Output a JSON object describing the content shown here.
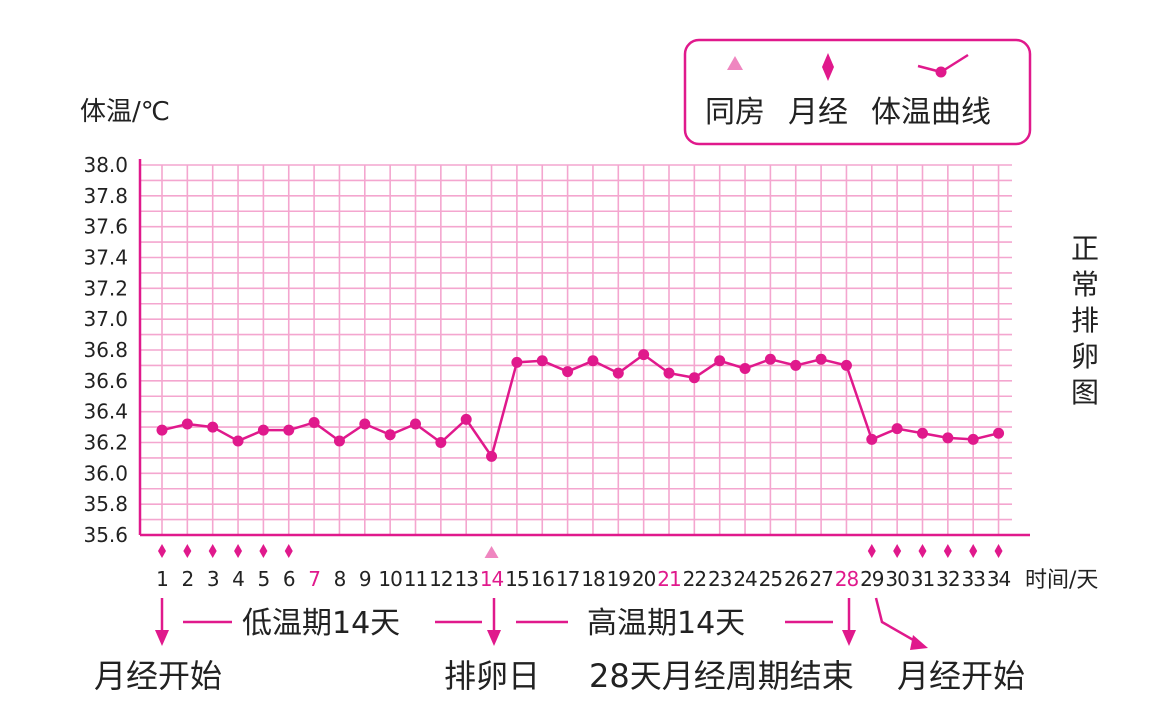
{
  "chart_data": {
    "type": "line",
    "title": "正常排卵图",
    "ylabel": "体温/℃",
    "xlabel": "时间/天",
    "ylim": [
      35.6,
      38.0
    ],
    "y_ticks": [
      "35.6",
      "35.8",
      "36.0",
      "36.2",
      "36.4",
      "36.6",
      "36.8",
      "37.0",
      "37.2",
      "37.4",
      "37.6",
      "37.8",
      "38.0"
    ],
    "x": [
      1,
      2,
      3,
      4,
      5,
      6,
      7,
      8,
      9,
      10,
      11,
      12,
      13,
      14,
      15,
      16,
      17,
      18,
      19,
      20,
      21,
      22,
      23,
      24,
      25,
      26,
      27,
      28,
      29,
      30,
      31,
      32,
      33,
      34
    ],
    "x_labels": [
      "1",
      "2",
      "3",
      "4",
      "5",
      "6",
      "7",
      "8",
      "9",
      "10",
      "11",
      "12",
      "13",
      "14",
      "15",
      "16",
      "17",
      "18",
      "19",
      "20",
      "21",
      "22",
      "23",
      "24",
      "25",
      "26",
      "27",
      "28",
      "29",
      "30",
      "31",
      "32",
      "33",
      "34"
    ],
    "highlighted_days": [
      7,
      14,
      21,
      28
    ],
    "series": [
      {
        "name": "体温曲线",
        "values": [
          36.28,
          36.32,
          36.3,
          36.21,
          36.28,
          36.28,
          36.33,
          36.21,
          36.32,
          36.25,
          36.32,
          36.2,
          36.35,
          36.11,
          36.72,
          36.73,
          36.66,
          36.73,
          36.65,
          36.77,
          36.65,
          36.62,
          36.73,
          36.68,
          36.74,
          36.7,
          36.74,
          36.7,
          36.22,
          36.29,
          36.26,
          36.23,
          36.22,
          36.26
        ]
      }
    ],
    "menstruation_days": [
      1,
      2,
      3,
      4,
      5,
      6,
      29,
      30,
      31,
      32,
      33,
      34
    ],
    "intercourse_days": [
      14
    ],
    "legend": {
      "placement": "top-right",
      "items": [
        {
          "label": "同房",
          "marker": "triangle"
        },
        {
          "label": "月经",
          "marker": "diamond"
        },
        {
          "label": "体温曲线",
          "marker": "line-dot"
        }
      ]
    },
    "annotations": {
      "low_phase": "低温期14天",
      "high_phase": "高温期14天",
      "menses_start": "月经开始",
      "ovulation_day": "排卵日",
      "cycle_end": "28天月经周期结束",
      "menses_start_2": "月经开始"
    },
    "grid": true,
    "colors": {
      "line": "#e0198c",
      "grid": "#f4a6cf",
      "axis": "#e0198c",
      "triangle": "#ef86c0",
      "highlight_text": "#e0198c"
    }
  }
}
